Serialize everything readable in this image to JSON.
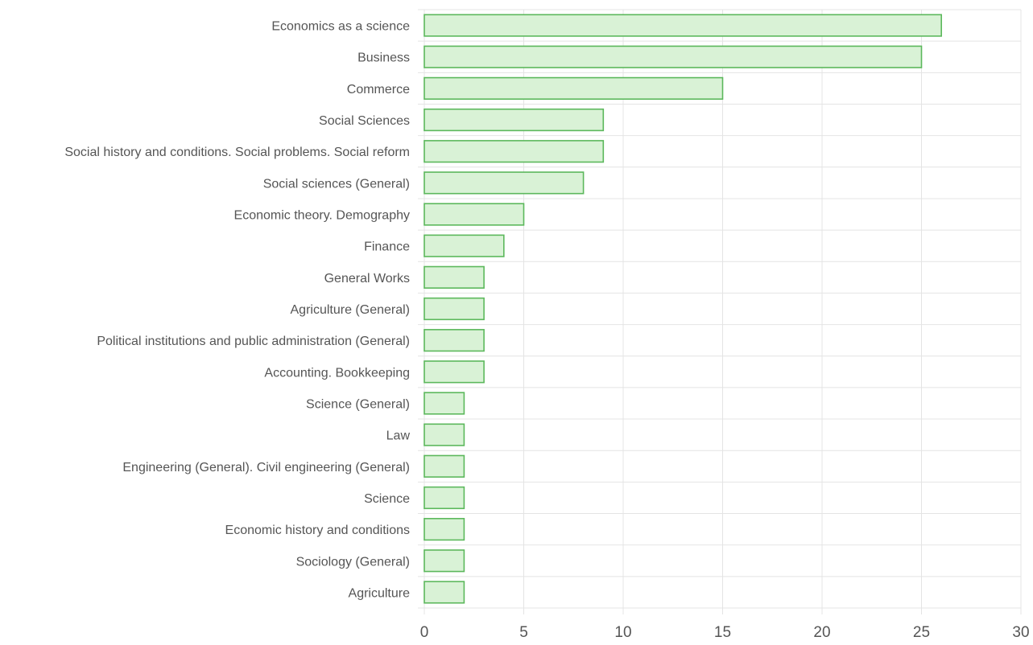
{
  "chart_data": {
    "type": "bar",
    "orientation": "horizontal",
    "title": "",
    "xlabel": "",
    "ylabel": "",
    "categories": [
      "Economics as a science",
      "Business",
      "Commerce",
      "Social Sciences",
      "Social history and conditions. Social problems. Social reform",
      "Social sciences (General)",
      "Economic theory. Demography",
      "Finance",
      "General Works",
      "Agriculture (General)",
      "Political institutions and public administration (General)",
      "Accounting. Bookkeeping",
      "Science (General)",
      "Law",
      "Engineering (General). Civil engineering (General)",
      "Science",
      "Economic history and conditions",
      "Sociology (General)",
      "Agriculture"
    ],
    "values": [
      26,
      25,
      15,
      9,
      9,
      8,
      5,
      4,
      3,
      3,
      3,
      3,
      2,
      2,
      2,
      2,
      2,
      2,
      2
    ],
    "xlim": [
      0,
      30
    ],
    "xticks": [
      0,
      5,
      10,
      15,
      20,
      25,
      30
    ],
    "grid": true,
    "legend": "none",
    "colors": {
      "bar_fill": "#d9f2d6",
      "bar_stroke": "#5cb85c",
      "grid": "#e4e4e4",
      "label": "#555555"
    }
  }
}
